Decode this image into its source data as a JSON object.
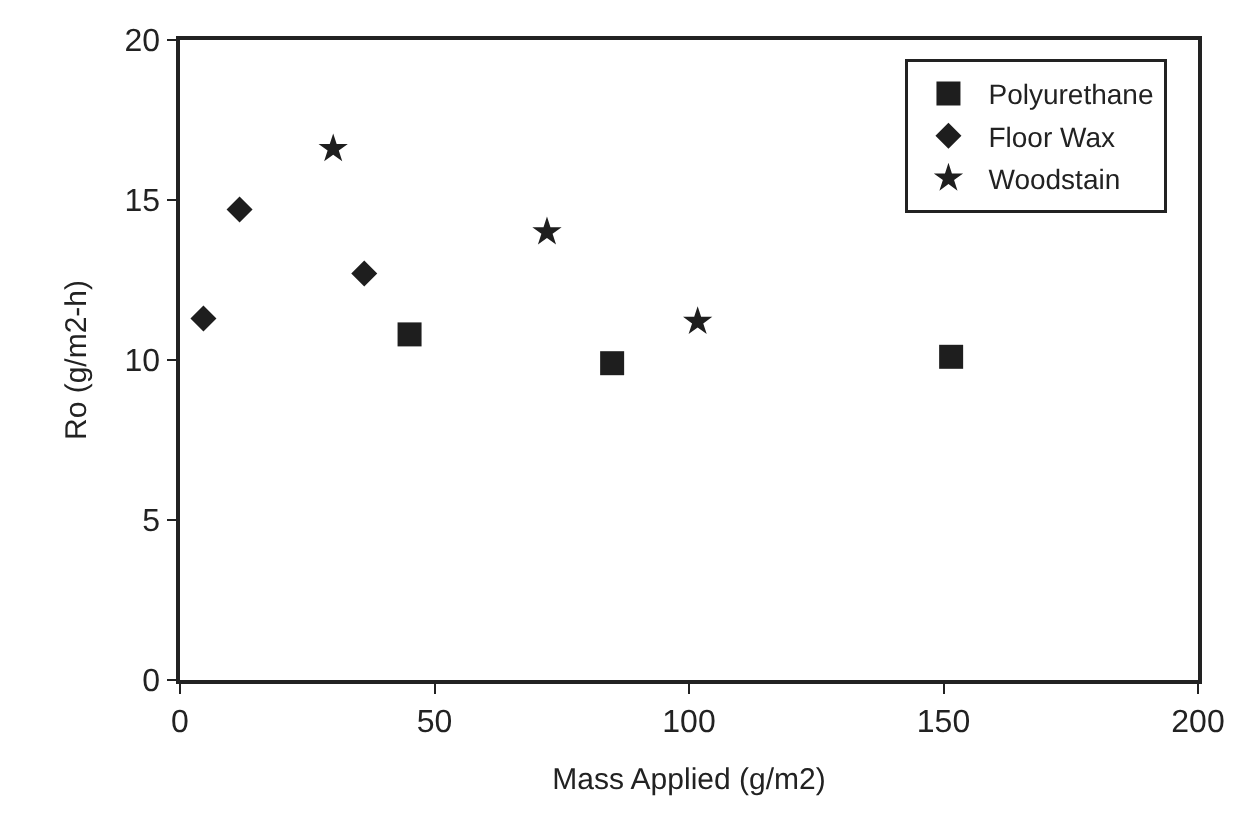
{
  "chart_data": {
    "type": "scatter",
    "xlabel": "Mass Applied (g/m2)",
    "ylabel": "Ro (g/m2-h)",
    "xlim": [
      0,
      200
    ],
    "xticks": [
      0,
      50,
      100,
      150,
      200
    ],
    "ylim": [
      0,
      20
    ],
    "yticks": [
      0,
      5,
      10,
      15,
      20
    ],
    "legend": "top right",
    "series": [
      {
        "name": "Polyurethane",
        "color": "#1e1e1e",
        "marker": "square",
        "x": [
          45.1,
          84.9,
          151.5
        ],
        "values": [
          10.8,
          9.9,
          10.1
        ]
      },
      {
        "name": "Floor Wax",
        "color": "#1e1e1e",
        "marker": "diamond",
        "x": [
          4.6,
          11.7,
          36.2
        ],
        "values": [
          11.3,
          14.7,
          12.7
        ]
      },
      {
        "name": "Woodstain",
        "color": "#1e1e1e",
        "marker": "star",
        "x": [
          30.1,
          72.1,
          101.7
        ],
        "values": [
          16.6,
          14.0,
          11.2
        ]
      }
    ]
  }
}
